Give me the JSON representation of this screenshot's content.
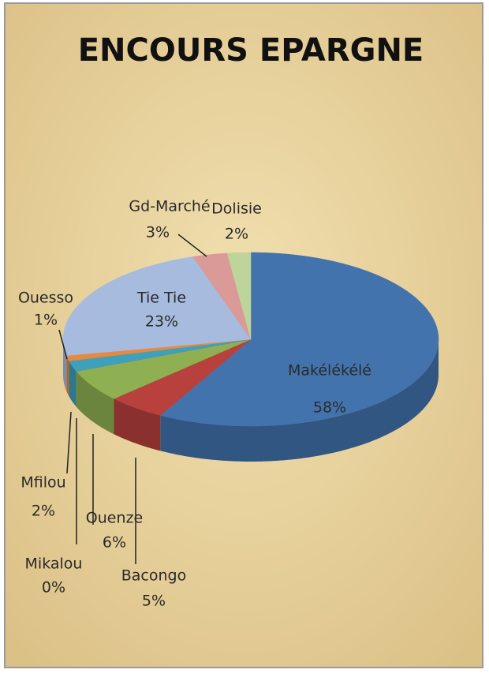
{
  "chart_data": {
    "type": "pie",
    "title": "ENCOURS EPARGNE",
    "categories": [
      "Makélékélé",
      "Bacongo",
      "Ouenze",
      "Mikalou",
      "Mfilou",
      "Ouesso",
      "Tie Tie",
      "Gd-Marché",
      "Dolisie"
    ],
    "values": [
      58,
      5,
      6,
      0,
      2,
      1,
      23,
      3,
      2
    ],
    "value_labels": [
      "58%",
      "5%",
      "6%",
      "0%",
      "2%",
      "1%",
      "23%",
      "3%",
      "2%"
    ],
    "colors": [
      "#4373ad",
      "#b8403d",
      "#8fb052",
      "#7d5fa0",
      "#3fa0bb",
      "#e88a3c",
      "#a7bbde",
      "#d99a98",
      "#bdd49a"
    ]
  }
}
